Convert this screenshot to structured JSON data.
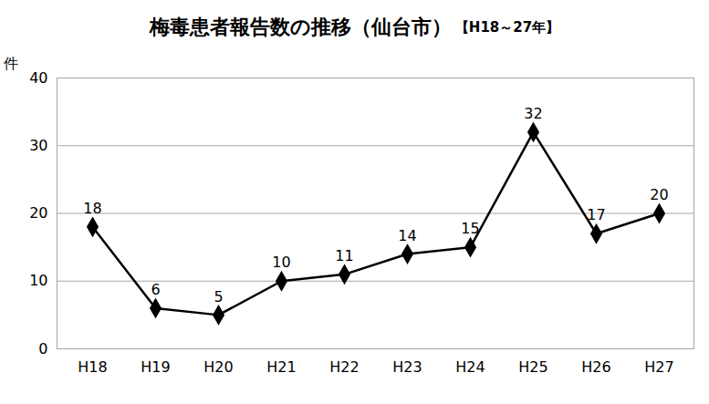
{
  "chart_data": {
    "type": "line",
    "title": "梅毒患者報告数の推移（仙台市）",
    "subtitle": "【H18～27年】",
    "y_label": "件",
    "categories": [
      "H18",
      "H19",
      "H20",
      "H21",
      "H22",
      "H23",
      "H24",
      "H25",
      "H26",
      "H27"
    ],
    "values": [
      18,
      6,
      5,
      10,
      11,
      14,
      15,
      32,
      17,
      20
    ],
    "color": "#000000",
    "marker": "diamond",
    "ylim": [
      0,
      40
    ],
    "yticks": [
      0,
      10,
      20,
      30,
      40
    ],
    "grid": true,
    "data_labels": true
  }
}
